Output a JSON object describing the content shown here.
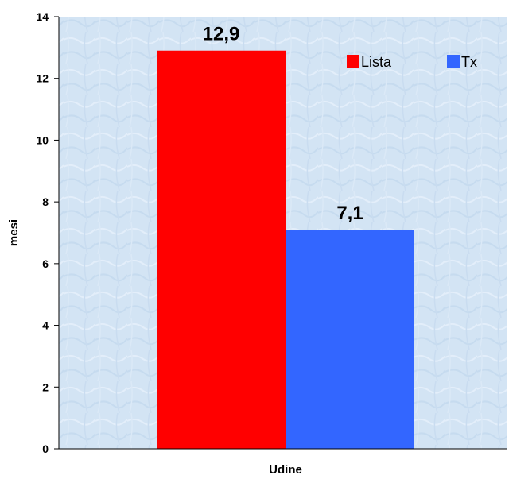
{
  "chart_data": {
    "type": "bar",
    "categories": [
      "Udine"
    ],
    "series": [
      {
        "name": "Lista",
        "values": [
          12.9
        ],
        "color": "#ff0000",
        "label": "12,9"
      },
      {
        "name": "Tx",
        "values": [
          7.1
        ],
        "color": "#3366ff",
        "label": "7,1"
      }
    ],
    "xlabel": "Udine",
    "ylabel": "mesi",
    "ylim": [
      0,
      14
    ],
    "yticks": [
      "0",
      "2",
      "4",
      "6",
      "8",
      "10",
      "12",
      "14"
    ],
    "grid": false,
    "legend_position": "top-right",
    "plot_background": "#d6e6f5"
  }
}
